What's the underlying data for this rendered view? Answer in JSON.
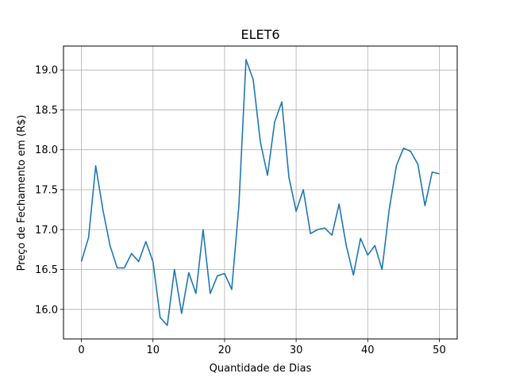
{
  "chart_data": {
    "type": "line",
    "title": "ELET6",
    "xlabel": "Quantidade de Dias",
    "ylabel": "Preço de Fechamento em (R$)",
    "xlim": [
      -2.5,
      52.5
    ],
    "ylim": [
      15.63,
      19.3
    ],
    "xticks": [
      0,
      10,
      20,
      30,
      40,
      50
    ],
    "yticks": [
      16.0,
      16.5,
      17.0,
      17.5,
      18.0,
      18.5,
      19.0
    ],
    "xtick_labels": [
      "0",
      "10",
      "20",
      "30",
      "40",
      "50"
    ],
    "ytick_labels": [
      "16.0",
      "16.5",
      "17.0",
      "17.5",
      "18.0",
      "18.5",
      "19.0"
    ],
    "grid": true,
    "line_color": "#1f77b4",
    "series": [
      {
        "x": [
          0,
          1,
          2,
          3,
          4,
          5,
          6,
          7,
          8,
          9,
          10,
          11,
          12,
          13,
          14,
          15,
          16,
          17,
          18,
          19,
          20,
          21,
          22,
          23,
          24,
          25,
          26,
          27,
          28,
          29,
          30,
          31,
          32,
          33,
          34,
          35,
          36,
          37,
          38,
          39,
          40,
          41,
          42,
          43,
          44,
          45,
          46,
          47,
          48,
          49,
          50
        ],
        "values": [
          16.6,
          16.9,
          17.8,
          17.25,
          16.8,
          16.52,
          16.52,
          16.7,
          16.6,
          16.85,
          16.6,
          15.9,
          15.8,
          16.5,
          15.95,
          16.46,
          16.2,
          17.0,
          16.2,
          16.42,
          16.45,
          16.25,
          17.3,
          19.13,
          18.88,
          18.1,
          17.68,
          18.35,
          18.6,
          17.65,
          17.23,
          17.5,
          16.95,
          17.0,
          17.02,
          16.93,
          17.32,
          16.8,
          16.43,
          16.89,
          16.68,
          16.8,
          16.5,
          17.25,
          17.8,
          18.02,
          17.98,
          17.82,
          17.3,
          17.72,
          17.7
        ]
      }
    ]
  }
}
